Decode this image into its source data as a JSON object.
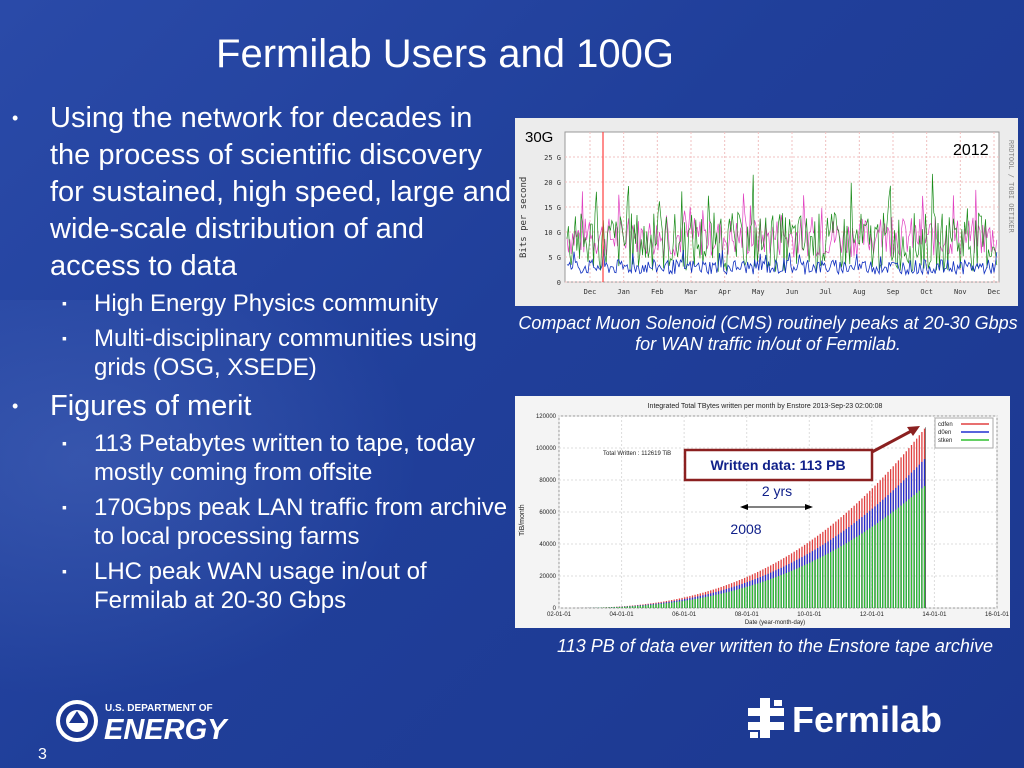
{
  "slide": {
    "title": "Fermilab Users and 100G",
    "page_number": "3"
  },
  "bullets": [
    {
      "text": "Using the network for decades in the process of scientific discovery for sustained, high speed, large and wide-scale distribution of and access to data",
      "subs": [
        "High Energy Physics community",
        "Multi-disciplinary communities using grids (OSG, XSEDE)"
      ]
    },
    {
      "text": "Figures of merit",
      "subs": [
        "113 Petabytes written to tape, today mostly coming from offsite",
        "170Gbps peak LAN traffic from archive to local processing farms",
        "LHC peak WAN usage in/out of Fermilab at 20-30 Gbps"
      ]
    }
  ],
  "chart_data": [
    {
      "type": "line",
      "ylabel": "Bits per second",
      "side_label": "RRDTOOL / TOBI OETIKER",
      "yticks": [
        "25 G",
        "20 G",
        "15 G",
        "10 G",
        "5 G",
        "0"
      ],
      "ytick_values": [
        25,
        20,
        15,
        10,
        5,
        0
      ],
      "categories": [
        "Dec",
        "Jan",
        "Feb",
        "Mar",
        "Apr",
        "May",
        "Jun",
        "Jul",
        "Aug",
        "Sep",
        "Oct",
        "Nov",
        "Dec"
      ],
      "ylim": [
        0,
        30
      ],
      "annotations": [
        "30G",
        "2012"
      ],
      "caption": "Compact Muon Solenoid (CMS) routinely peaks at 20-30 Gbps for WAN traffic in/out of Fermilab.",
      "colors": {
        "series_a": "#1a8c1a",
        "series_b": "#e040c0",
        "series_c": "#1030c0",
        "spike": "#ff4040"
      }
    },
    {
      "type": "bar",
      "title": "Integrated Total TBytes written per month by Enstore 2013-Sep-23 02:00:08",
      "total_note": "Total Written : 112619 TiB",
      "ylabel": "TiB/month",
      "xlabel": "Date (year-month-day)",
      "yticks": [
        "120000",
        "100000",
        "80000",
        "60000",
        "40000",
        "20000",
        "0"
      ],
      "ytick_values": [
        120000,
        100000,
        80000,
        60000,
        40000,
        20000,
        0
      ],
      "xticks": [
        "02-01-01",
        "04-01-01",
        "06-01-01",
        "08-01-01",
        "10-01-01",
        "12-01-01",
        "14-01-01",
        "16-01-01"
      ],
      "xlim": [
        2002,
        2016
      ],
      "ylim": [
        0,
        120000
      ],
      "series": [
        {
          "name": "cdfen"
        },
        {
          "name": "d0en"
        },
        {
          "name": "stken"
        }
      ],
      "colors": [
        "#e04040",
        "#2030d0",
        "#30c030"
      ],
      "annotation_box": "Written data: 113 PB",
      "annotation_span": "2 yrs",
      "annotation_year": "2008",
      "caption": "113 PB of data ever written to the Enstore tape archive"
    }
  ],
  "logos": {
    "doe_line1": "U.S. DEPARTMENT OF",
    "doe_line2": "ENERGY",
    "fermilab": "Fermilab"
  }
}
